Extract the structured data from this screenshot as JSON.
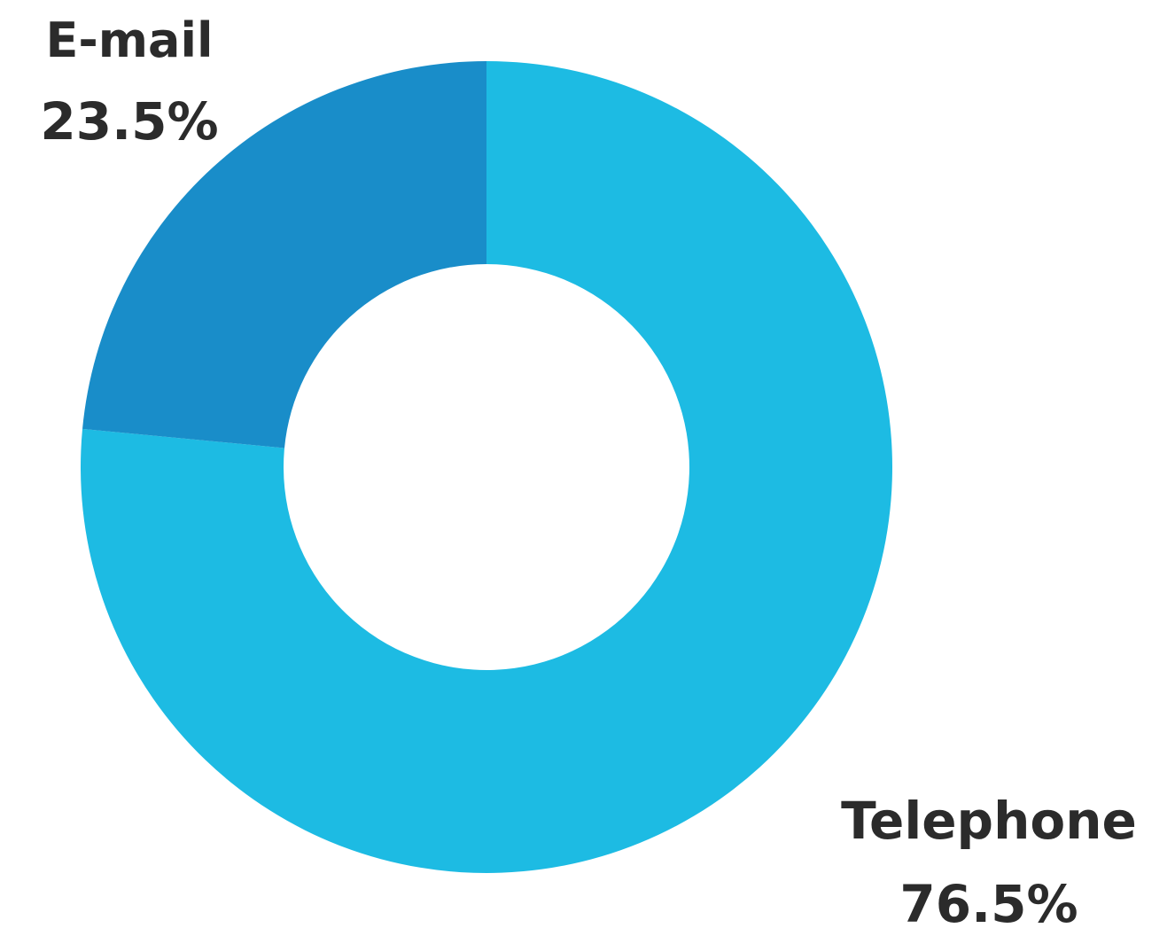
{
  "chart_data": {
    "type": "pie",
    "style": "donut",
    "rotation": "clockwise from top",
    "slices": [
      {
        "label": "Telephone",
        "value": 76.5,
        "value_label": "76.5%",
        "color": "#1DBBE3"
      },
      {
        "label": "E-mail",
        "value": 23.5,
        "value_label": "23.5%",
        "color": "#198DC9"
      }
    ],
    "legend": "none",
    "background": "#FFFFFF"
  }
}
